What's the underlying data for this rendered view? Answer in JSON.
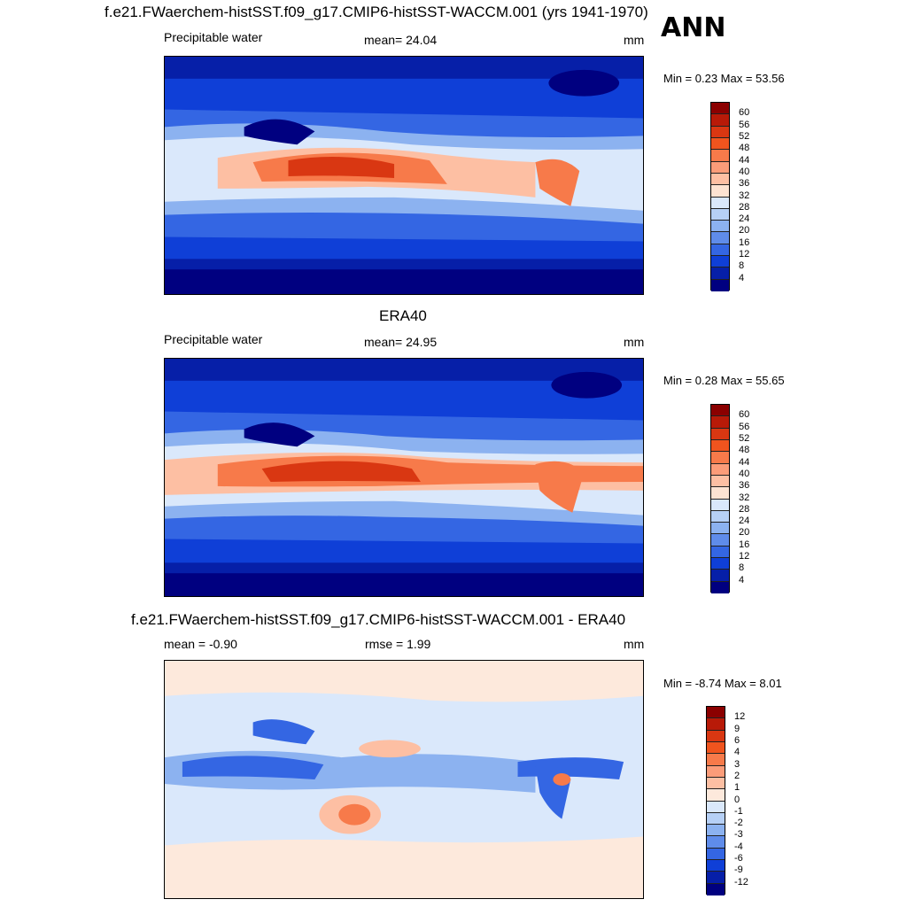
{
  "header": {
    "title": "f.e21.FWaerchem-histSST.f09_g17.CMIP6-histSST-WACCM.001 (yrs 1941-1970)",
    "season": "ANN"
  },
  "panels": [
    {
      "id": "model",
      "variable": "Precipitable water",
      "stat": "mean=  24.04",
      "units": "mm",
      "minmax": "Min =   0.23 Max =  53.56",
      "levels": [
        "60",
        "56",
        "52",
        "48",
        "44",
        "40",
        "36",
        "32",
        "28",
        "24",
        "20",
        "16",
        "12",
        "8",
        "4"
      ],
      "colors": [
        "#8b0000",
        "#b81a08",
        "#d93712",
        "#f0541e",
        "#f77a4a",
        "#fb9c79",
        "#fdbfa3",
        "#fde3d2",
        "#dae8fb",
        "#b6d0f6",
        "#8cb2f0",
        "#5f8cea",
        "#3466e3",
        "#0f3fd7",
        "#061fa8",
        "#000080"
      ]
    },
    {
      "id": "obs",
      "title": "ERA40",
      "variable": "Precipitable water",
      "stat": "mean=  24.95",
      "units": "mm",
      "minmax": "Min =   0.28 Max =  55.65",
      "levels": [
        "60",
        "56",
        "52",
        "48",
        "44",
        "40",
        "36",
        "32",
        "28",
        "24",
        "20",
        "16",
        "12",
        "8",
        "4"
      ],
      "colors": [
        "#8b0000",
        "#b81a08",
        "#d93712",
        "#f0541e",
        "#f77a4a",
        "#fb9c79",
        "#fdbfa3",
        "#fde3d2",
        "#dae8fb",
        "#b6d0f6",
        "#8cb2f0",
        "#5f8cea",
        "#3466e3",
        "#0f3fd7",
        "#061fa8",
        "#000080"
      ]
    },
    {
      "id": "diff",
      "title": "f.e21.FWaerchem-histSST.f09_g17.CMIP6-histSST-WACCM.001 - ERA40",
      "stat": "mean =  -0.90",
      "stat2": "rmse =   1.99",
      "units": "mm",
      "minmax": "Min =  -8.74 Max =   8.01",
      "levels": [
        "12",
        "9",
        "6",
        "4",
        "3",
        "2",
        "1",
        "0",
        "-1",
        "-2",
        "-3",
        "-4",
        "-6",
        "-9",
        "-12"
      ],
      "colors": [
        "#8b0000",
        "#b81a08",
        "#d93712",
        "#f0541e",
        "#f77a4a",
        "#fb9c79",
        "#fdbfa3",
        "#fde9dc",
        "#dae8fb",
        "#b6d0f6",
        "#8cb2f0",
        "#5f8cea",
        "#3466e3",
        "#0f3fd7",
        "#061fa8",
        "#000080"
      ]
    }
  ]
}
